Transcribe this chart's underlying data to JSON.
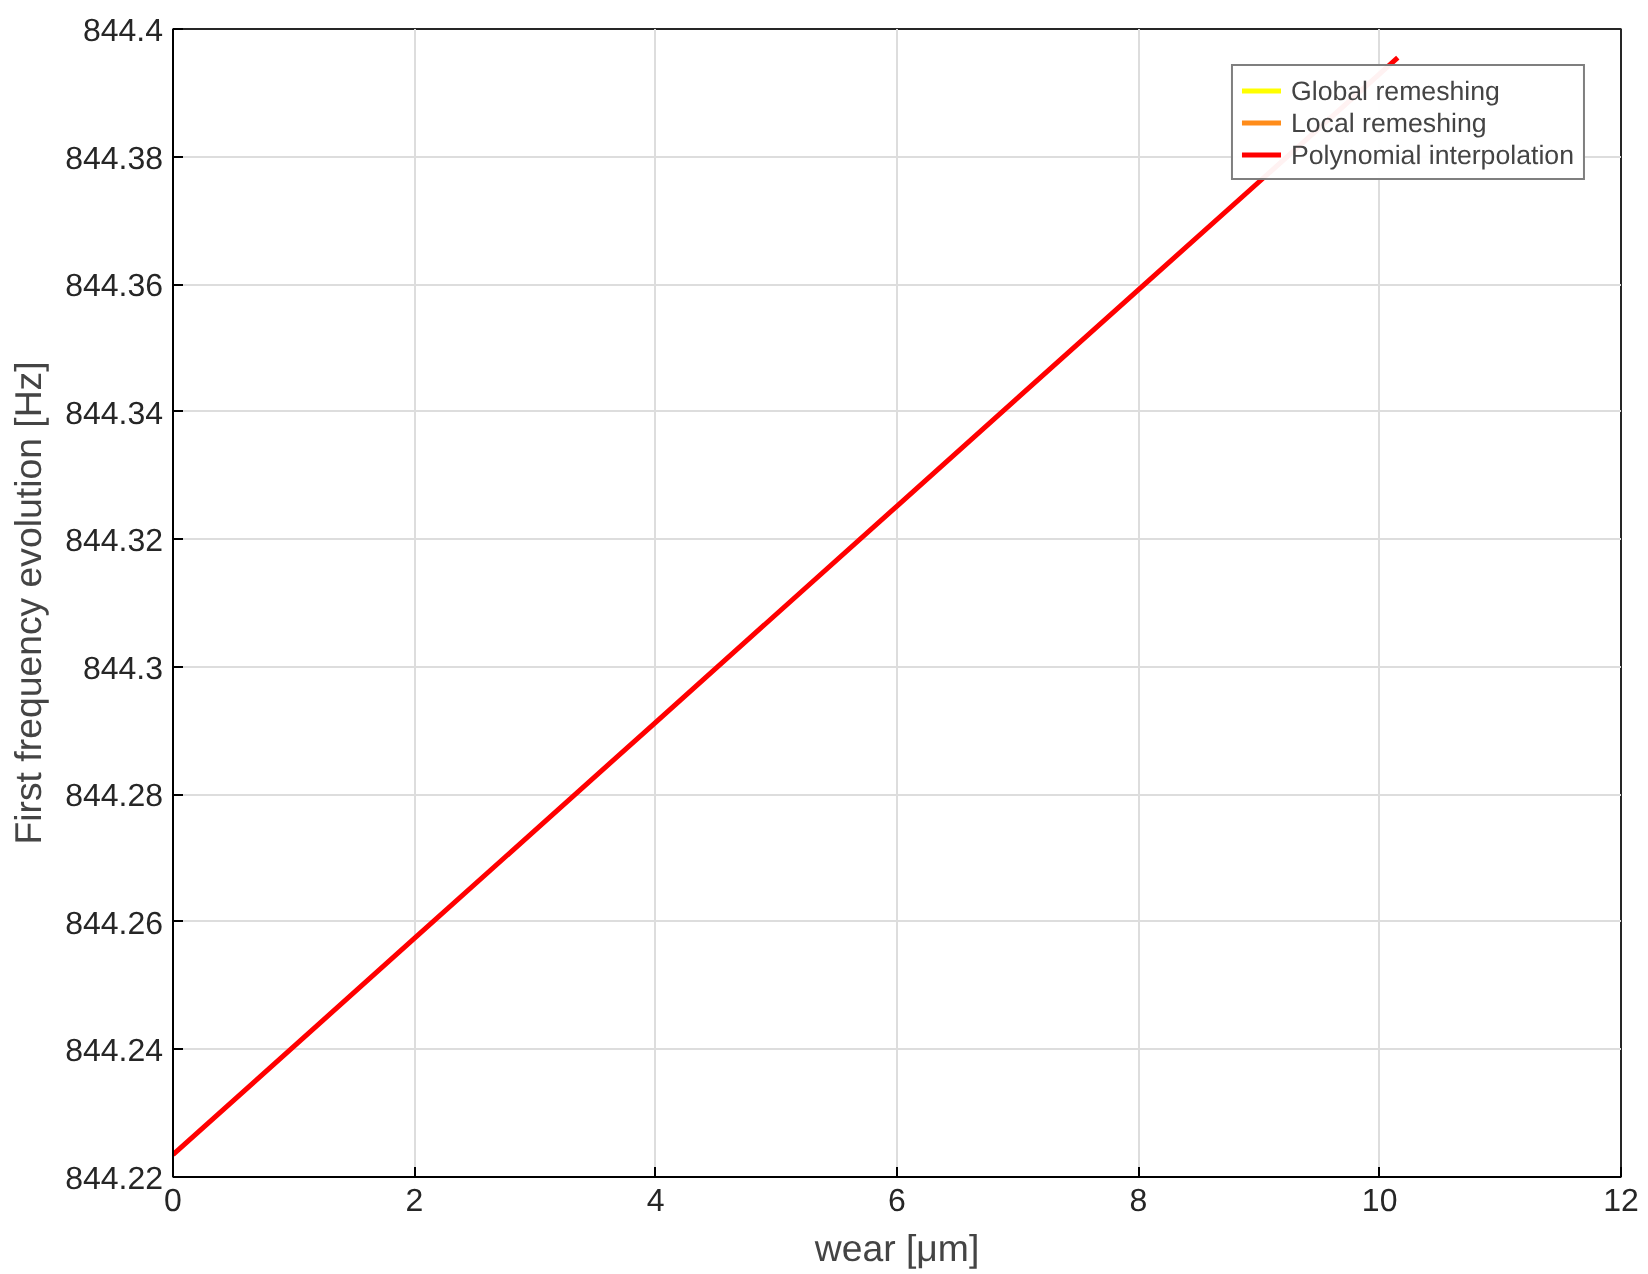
{
  "chart_data": {
    "type": "line",
    "xlabel": "wear [μm]",
    "ylabel": "First frequency evolution [Hz]",
    "xlim": [
      0,
      12
    ],
    "xticks": [
      0,
      2,
      4,
      6,
      8,
      10,
      12
    ],
    "ylim": [
      844.22,
      844.4
    ],
    "yticks": [
      844.22,
      844.24,
      844.26,
      844.28,
      844.3,
      844.32,
      844.34,
      844.36,
      844.38,
      844.4
    ],
    "x": [
      0,
      2,
      4,
      6,
      8,
      10.15
    ],
    "series": [
      {
        "name": "Global remeshing",
        "color": "#ffff00",
        "values": [
          null,
          null,
          null,
          null,
          null,
          null
        ]
      },
      {
        "name": "Local remeshing",
        "color": "#ff8c1a",
        "values": [
          null,
          null,
          null,
          null,
          null,
          null
        ]
      },
      {
        "name": "Polynomial interpolation",
        "color": "#ff0000",
        "values": [
          844.2235,
          844.2574,
          844.2913,
          844.3252,
          844.3591,
          844.3955
        ]
      }
    ],
    "grid": true,
    "legend": "top right",
    "line_style": "solid"
  }
}
